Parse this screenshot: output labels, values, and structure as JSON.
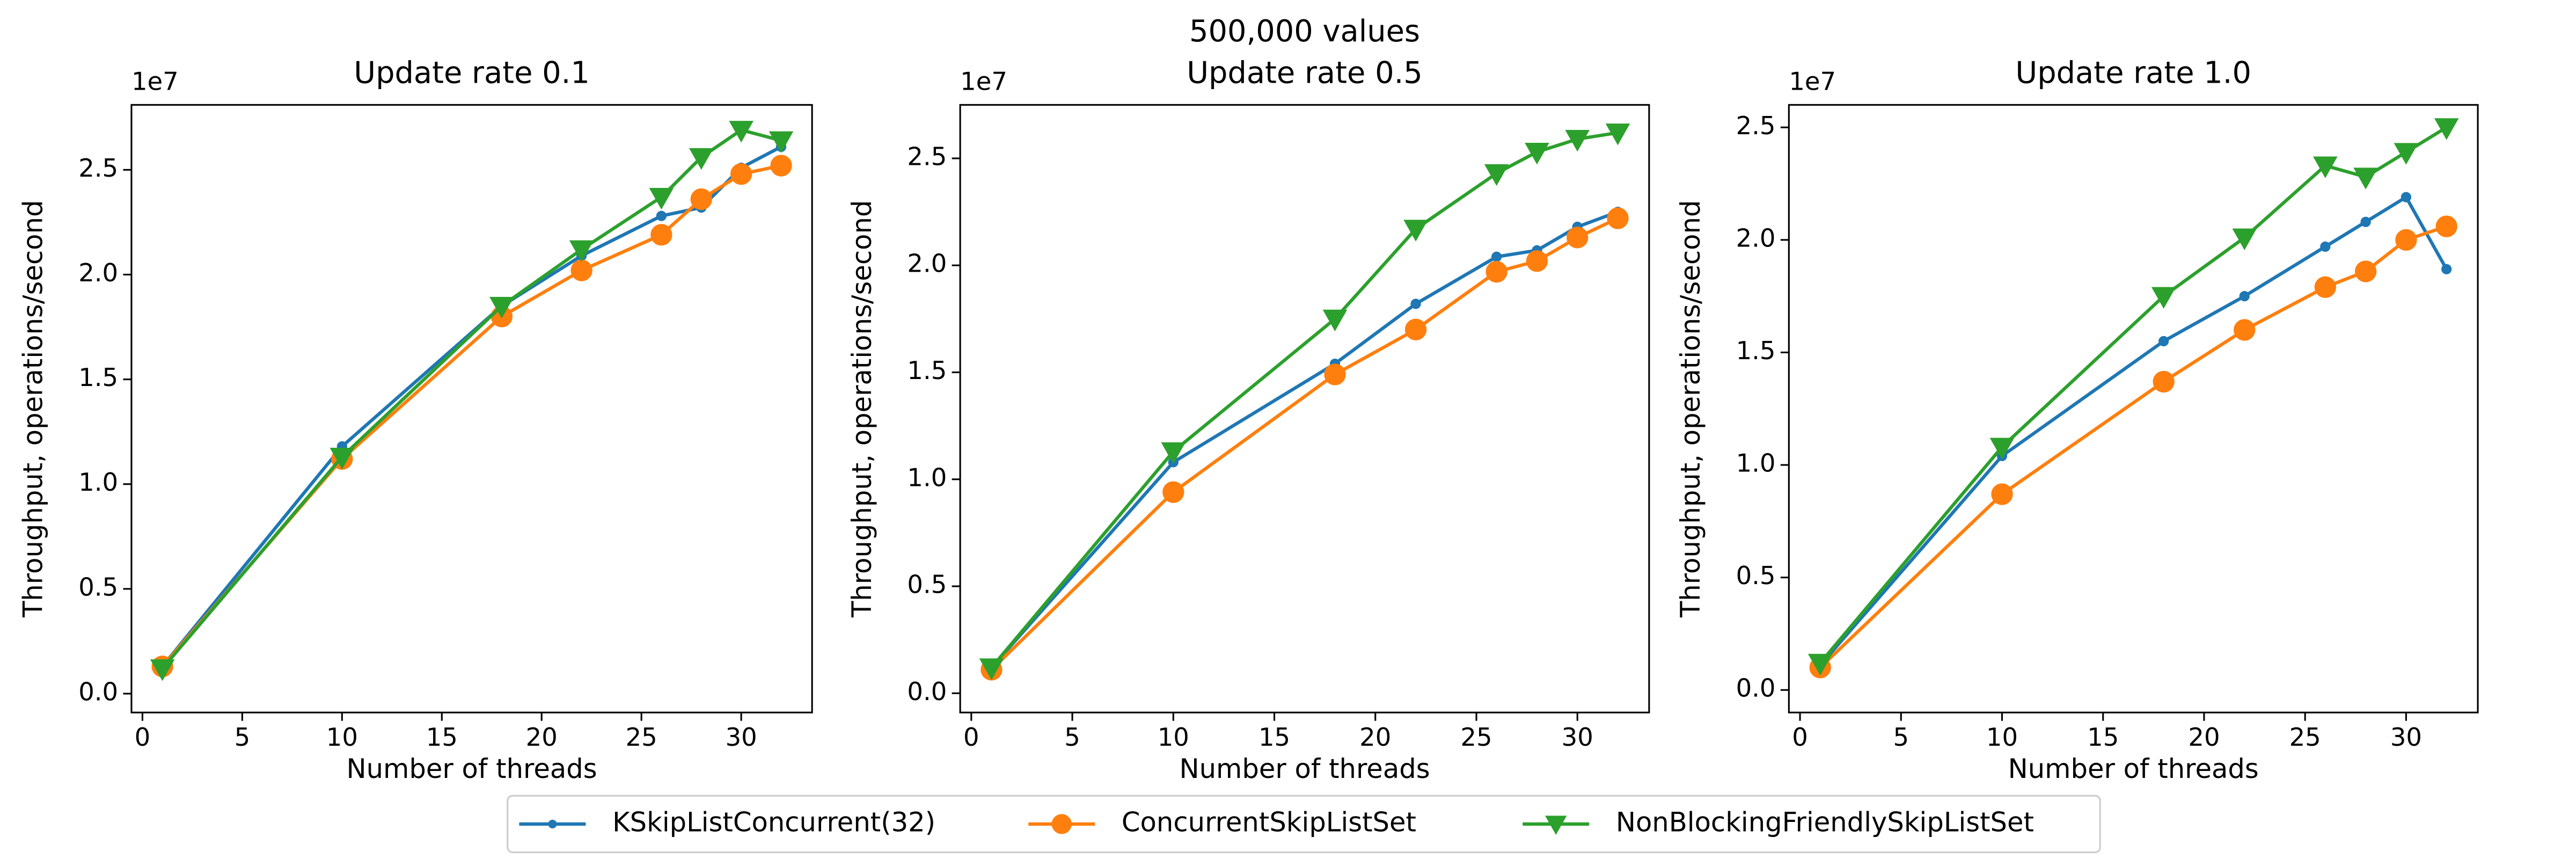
{
  "title": "500,000 values",
  "chart_data": [
    {
      "type": "line",
      "title": "Update rate 0.1",
      "x_label": "Number of threads",
      "y_label": "Throughput, operations/second",
      "y_offset_label": "1e7",
      "x": [
        1,
        10,
        18,
        22,
        26,
        28,
        30,
        32
      ],
      "xlim": [
        -0.55,
        33.55
      ],
      "xticks": [
        0,
        5,
        10,
        15,
        20,
        25,
        30
      ],
      "ylim": [
        -0.09,
        2.81
      ],
      "yticks": [
        {
          "value": 0,
          "label": "0.0"
        },
        0.5,
        {
          "value": 1,
          "label": "1.0"
        },
        1.5,
        {
          "value": 2,
          "label": "2.0"
        },
        2.5
      ],
      "series": [
        {
          "name": "KSkipListConcurrent(32)",
          "color": "#1f77b4",
          "marker": "small-circle",
          "values": [
            0.13,
            1.18,
            1.85,
            2.09,
            2.28,
            2.32,
            2.51,
            2.61
          ]
        },
        {
          "name": "ConcurrentSkipListSet",
          "color": "#ff7f0e",
          "marker": "circle",
          "values": [
            0.13,
            1.12,
            1.8,
            2.02,
            2.19,
            2.36,
            2.48,
            2.52
          ]
        },
        {
          "name": "NonBlockingFriendlySkipListSet",
          "color": "#2ca02c",
          "marker": "triangle-down",
          "values": [
            0.12,
            1.13,
            1.85,
            2.12,
            2.37,
            2.56,
            2.69,
            2.64
          ]
        }
      ]
    },
    {
      "type": "line",
      "title": "Update rate 0.5",
      "x_label": "Number of threads",
      "y_label": "Throughput, operations/second",
      "y_offset_label": "1e7",
      "x": [
        1,
        10,
        18,
        22,
        26,
        28,
        30,
        32
      ],
      "xlim": [
        -0.55,
        33.55
      ],
      "xticks": [
        0,
        5,
        10,
        15,
        20,
        25,
        30
      ],
      "ylim": [
        -0.09,
        2.75
      ],
      "yticks": [
        {
          "value": 0,
          "label": "0.0"
        },
        0.5,
        {
          "value": 1,
          "label": "1.0"
        },
        1.5,
        {
          "value": 2,
          "label": "2.0"
        },
        2.5
      ],
      "series": [
        {
          "name": "KSkipListConcurrent(32)",
          "color": "#1f77b4",
          "marker": "small-circle",
          "values": [
            0.12,
            1.08,
            1.54,
            1.82,
            2.04,
            2.07,
            2.18,
            2.25
          ]
        },
        {
          "name": "ConcurrentSkipListSet",
          "color": "#ff7f0e",
          "marker": "circle",
          "values": [
            0.11,
            0.94,
            1.49,
            1.7,
            1.97,
            2.02,
            2.13,
            2.22
          ]
        },
        {
          "name": "NonBlockingFriendlySkipListSet",
          "color": "#2ca02c",
          "marker": "triangle-down",
          "values": [
            0.12,
            1.13,
            1.75,
            2.17,
            2.43,
            2.53,
            2.59,
            2.62
          ]
        }
      ]
    },
    {
      "type": "line",
      "title": "Update rate 1.0",
      "x_label": "Number of threads",
      "y_label": "Throughput, operations/second",
      "y_offset_label": "1e7",
      "x": [
        1,
        10,
        18,
        22,
        26,
        28,
        30,
        32
      ],
      "xlim": [
        -0.55,
        33.55
      ],
      "xticks": [
        0,
        5,
        10,
        15,
        20,
        25,
        30
      ],
      "ylim": [
        -0.1,
        2.6
      ],
      "yticks": [
        {
          "value": 0,
          "label": "0.0"
        },
        0.5,
        {
          "value": 1,
          "label": "1.0"
        },
        1.5,
        {
          "value": 2,
          "label": "2.0"
        },
        2.5
      ],
      "series": [
        {
          "name": "KSkipListConcurrent(32)",
          "color": "#1f77b4",
          "marker": "small-circle",
          "values": [
            0.11,
            1.04,
            1.55,
            1.75,
            1.97,
            2.08,
            2.19,
            1.87
          ]
        },
        {
          "name": "ConcurrentSkipListSet",
          "color": "#ff7f0e",
          "marker": "circle",
          "values": [
            0.1,
            0.87,
            1.37,
            1.6,
            1.79,
            1.86,
            2.0,
            2.06
          ]
        },
        {
          "name": "NonBlockingFriendlySkipListSet",
          "color": "#2ca02c",
          "marker": "triangle-down",
          "values": [
            0.12,
            1.08,
            1.75,
            2.01,
            2.33,
            2.28,
            2.39,
            2.5
          ]
        }
      ]
    }
  ]
}
